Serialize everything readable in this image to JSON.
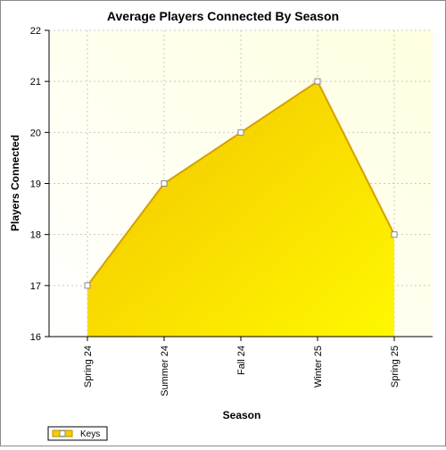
{
  "chart_data": {
    "type": "area",
    "title": "Average Players Connected By Season",
    "xlabel": "Season",
    "ylabel": "Players Connected",
    "categories": [
      "Spring 24",
      "Summer 24",
      "Fall 24",
      "Winter 25",
      "Spring 25"
    ],
    "series": [
      {
        "name": "Keys",
        "values": [
          17,
          19,
          20,
          21,
          18
        ]
      }
    ],
    "ylim": [
      16,
      22
    ],
    "yticks": [
      16,
      17,
      18,
      19,
      20,
      21,
      22
    ],
    "grid": true,
    "legend_position": "bottom-left",
    "colors": {
      "fill_top": "#f2c200",
      "fill_bottom": "#fff800",
      "line": "#d4a000",
      "plot_bg_light": "#ffffff",
      "plot_bg_tint": "#ffffe0"
    }
  }
}
